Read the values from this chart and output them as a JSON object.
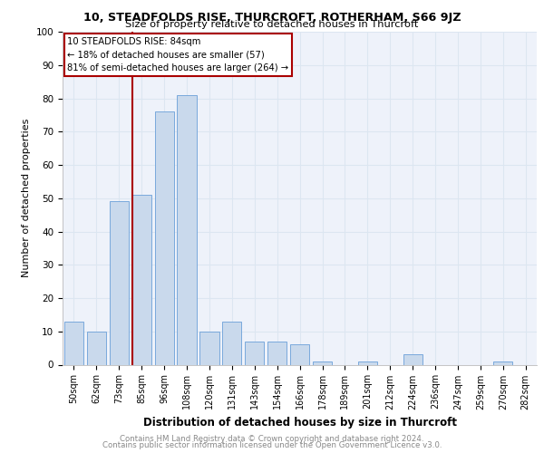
{
  "title": "10, STEADFOLDS RISE, THURCROFT, ROTHERHAM, S66 9JZ",
  "subtitle": "Size of property relative to detached houses in Thurcroft",
  "xlabel": "Distribution of detached houses by size in Thurcroft",
  "ylabel": "Number of detached properties",
  "categories": [
    "50sqm",
    "62sqm",
    "73sqm",
    "85sqm",
    "96sqm",
    "108sqm",
    "120sqm",
    "131sqm",
    "143sqm",
    "154sqm",
    "166sqm",
    "178sqm",
    "189sqm",
    "201sqm",
    "212sqm",
    "224sqm",
    "236sqm",
    "247sqm",
    "259sqm",
    "270sqm",
    "282sqm"
  ],
  "values": [
    13,
    10,
    49,
    51,
    76,
    81,
    10,
    13,
    7,
    7,
    6,
    1,
    0,
    1,
    0,
    3,
    0,
    0,
    0,
    1,
    0
  ],
  "bar_color": "#c9d9ec",
  "bar_edge_color": "#6a9fd8",
  "marker_label": "10 STEADFOLDS RISE: 84sqm",
  "annotation_line1": "← 18% of detached houses are smaller (57)",
  "annotation_line2": "81% of semi-detached houses are larger (264) →",
  "line_color": "#aa0000",
  "grid_color": "#dce6f1",
  "background_color": "#eef2fa",
  "footnote1": "Contains HM Land Registry data © Crown copyright and database right 2024.",
  "footnote2": "Contains public sector information licensed under the Open Government Licence v3.0.",
  "ylim": [
    0,
    100
  ],
  "yticks": [
    0,
    10,
    20,
    30,
    40,
    50,
    60,
    70,
    80,
    90,
    100
  ]
}
